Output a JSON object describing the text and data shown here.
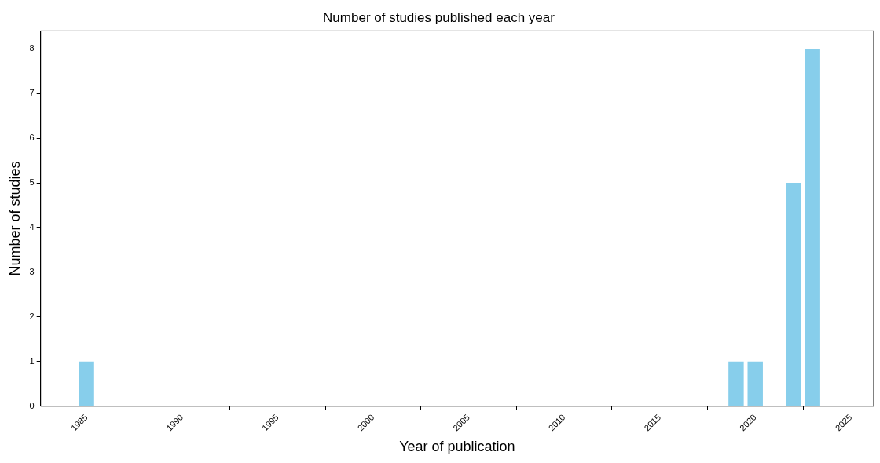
{
  "chart_data": {
    "type": "bar",
    "title": "Number of studies published each year",
    "xlabel": "Year of publication",
    "ylabel": "Number of studies",
    "x": [
      1985,
      2019,
      2020,
      2022,
      2023
    ],
    "values": [
      1,
      1,
      1,
      5,
      8
    ],
    "color": "#87ceeb",
    "xlim": [
      1982.6,
      2026.2
    ],
    "xticks": [
      1985,
      1990,
      1995,
      2000,
      2005,
      2010,
      2015,
      2020,
      2025
    ],
    "ylim": [
      0,
      8.4
    ],
    "yticks": [
      0,
      1,
      2,
      3,
      4,
      5,
      6,
      7,
      8
    ]
  }
}
